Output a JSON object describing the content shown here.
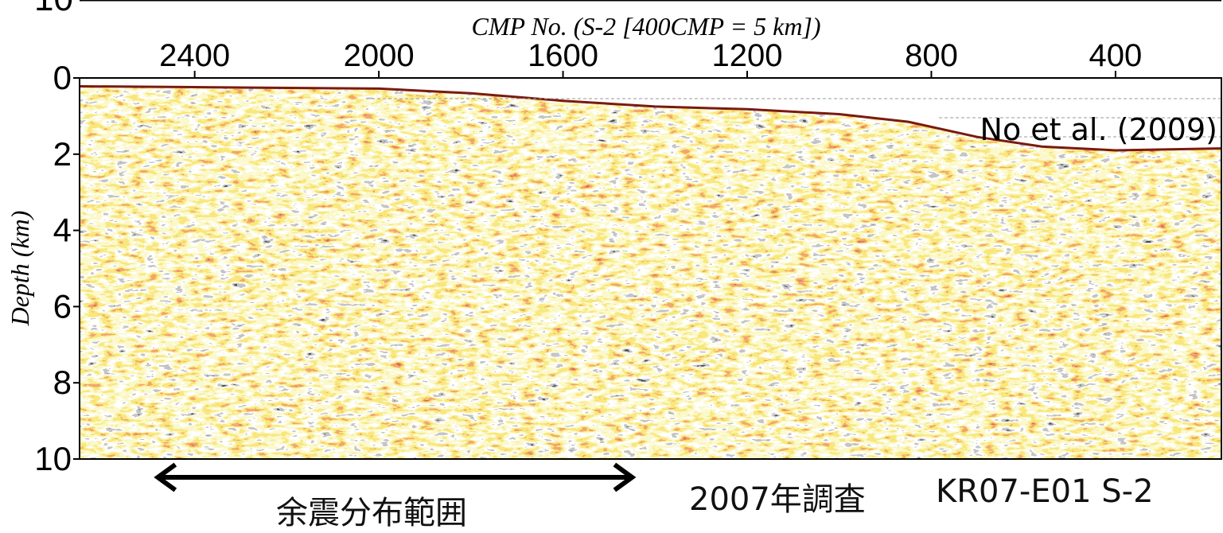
{
  "chart_data": {
    "type": "heatmap",
    "title": "",
    "xlabel": "CMP No. (S-2 [400CMP = 5 km])",
    "ylabel": "Depth (km)",
    "x_ticks": [
      2400,
      2000,
      1600,
      1200,
      800,
      400
    ],
    "y_ticks": [
      0,
      2,
      4,
      6,
      8,
      10
    ],
    "top_stub_label": "10",
    "xlim": [
      2650,
      170
    ],
    "ylim": [
      0,
      10
    ],
    "colormap": [
      "#111111",
      "#8a8a8a",
      "#ffffff",
      "#f7ef9a",
      "#f2cc33",
      "#e6602a",
      "#b02418"
    ],
    "seafloor_depth_km": [
      {
        "cmp": 2650,
        "depth": 0.22
      },
      {
        "cmp": 2400,
        "depth": 0.24
      },
      {
        "cmp": 2200,
        "depth": 0.26
      },
      {
        "cmp": 2000,
        "depth": 0.28
      },
      {
        "cmp": 1800,
        "depth": 0.4
      },
      {
        "cmp": 1600,
        "depth": 0.6
      },
      {
        "cmp": 1400,
        "depth": 0.75
      },
      {
        "cmp": 1200,
        "depth": 0.82
      },
      {
        "cmp": 1000,
        "depth": 0.95
      },
      {
        "cmp": 850,
        "depth": 1.15
      },
      {
        "cmp": 700,
        "depth": 1.55
      },
      {
        "cmp": 560,
        "depth": 1.8
      },
      {
        "cmp": 400,
        "depth": 1.9
      },
      {
        "cmp": 170,
        "depth": 1.85
      }
    ],
    "annotations": {
      "reference": "No et al. (2009)",
      "aftershock_range": {
        "label": "余震分布範囲",
        "cmp_from": 2480,
        "cmp_to": 1450
      },
      "survey_year": "2007年調査",
      "line_name": "KR07-E01 S-2"
    }
  }
}
